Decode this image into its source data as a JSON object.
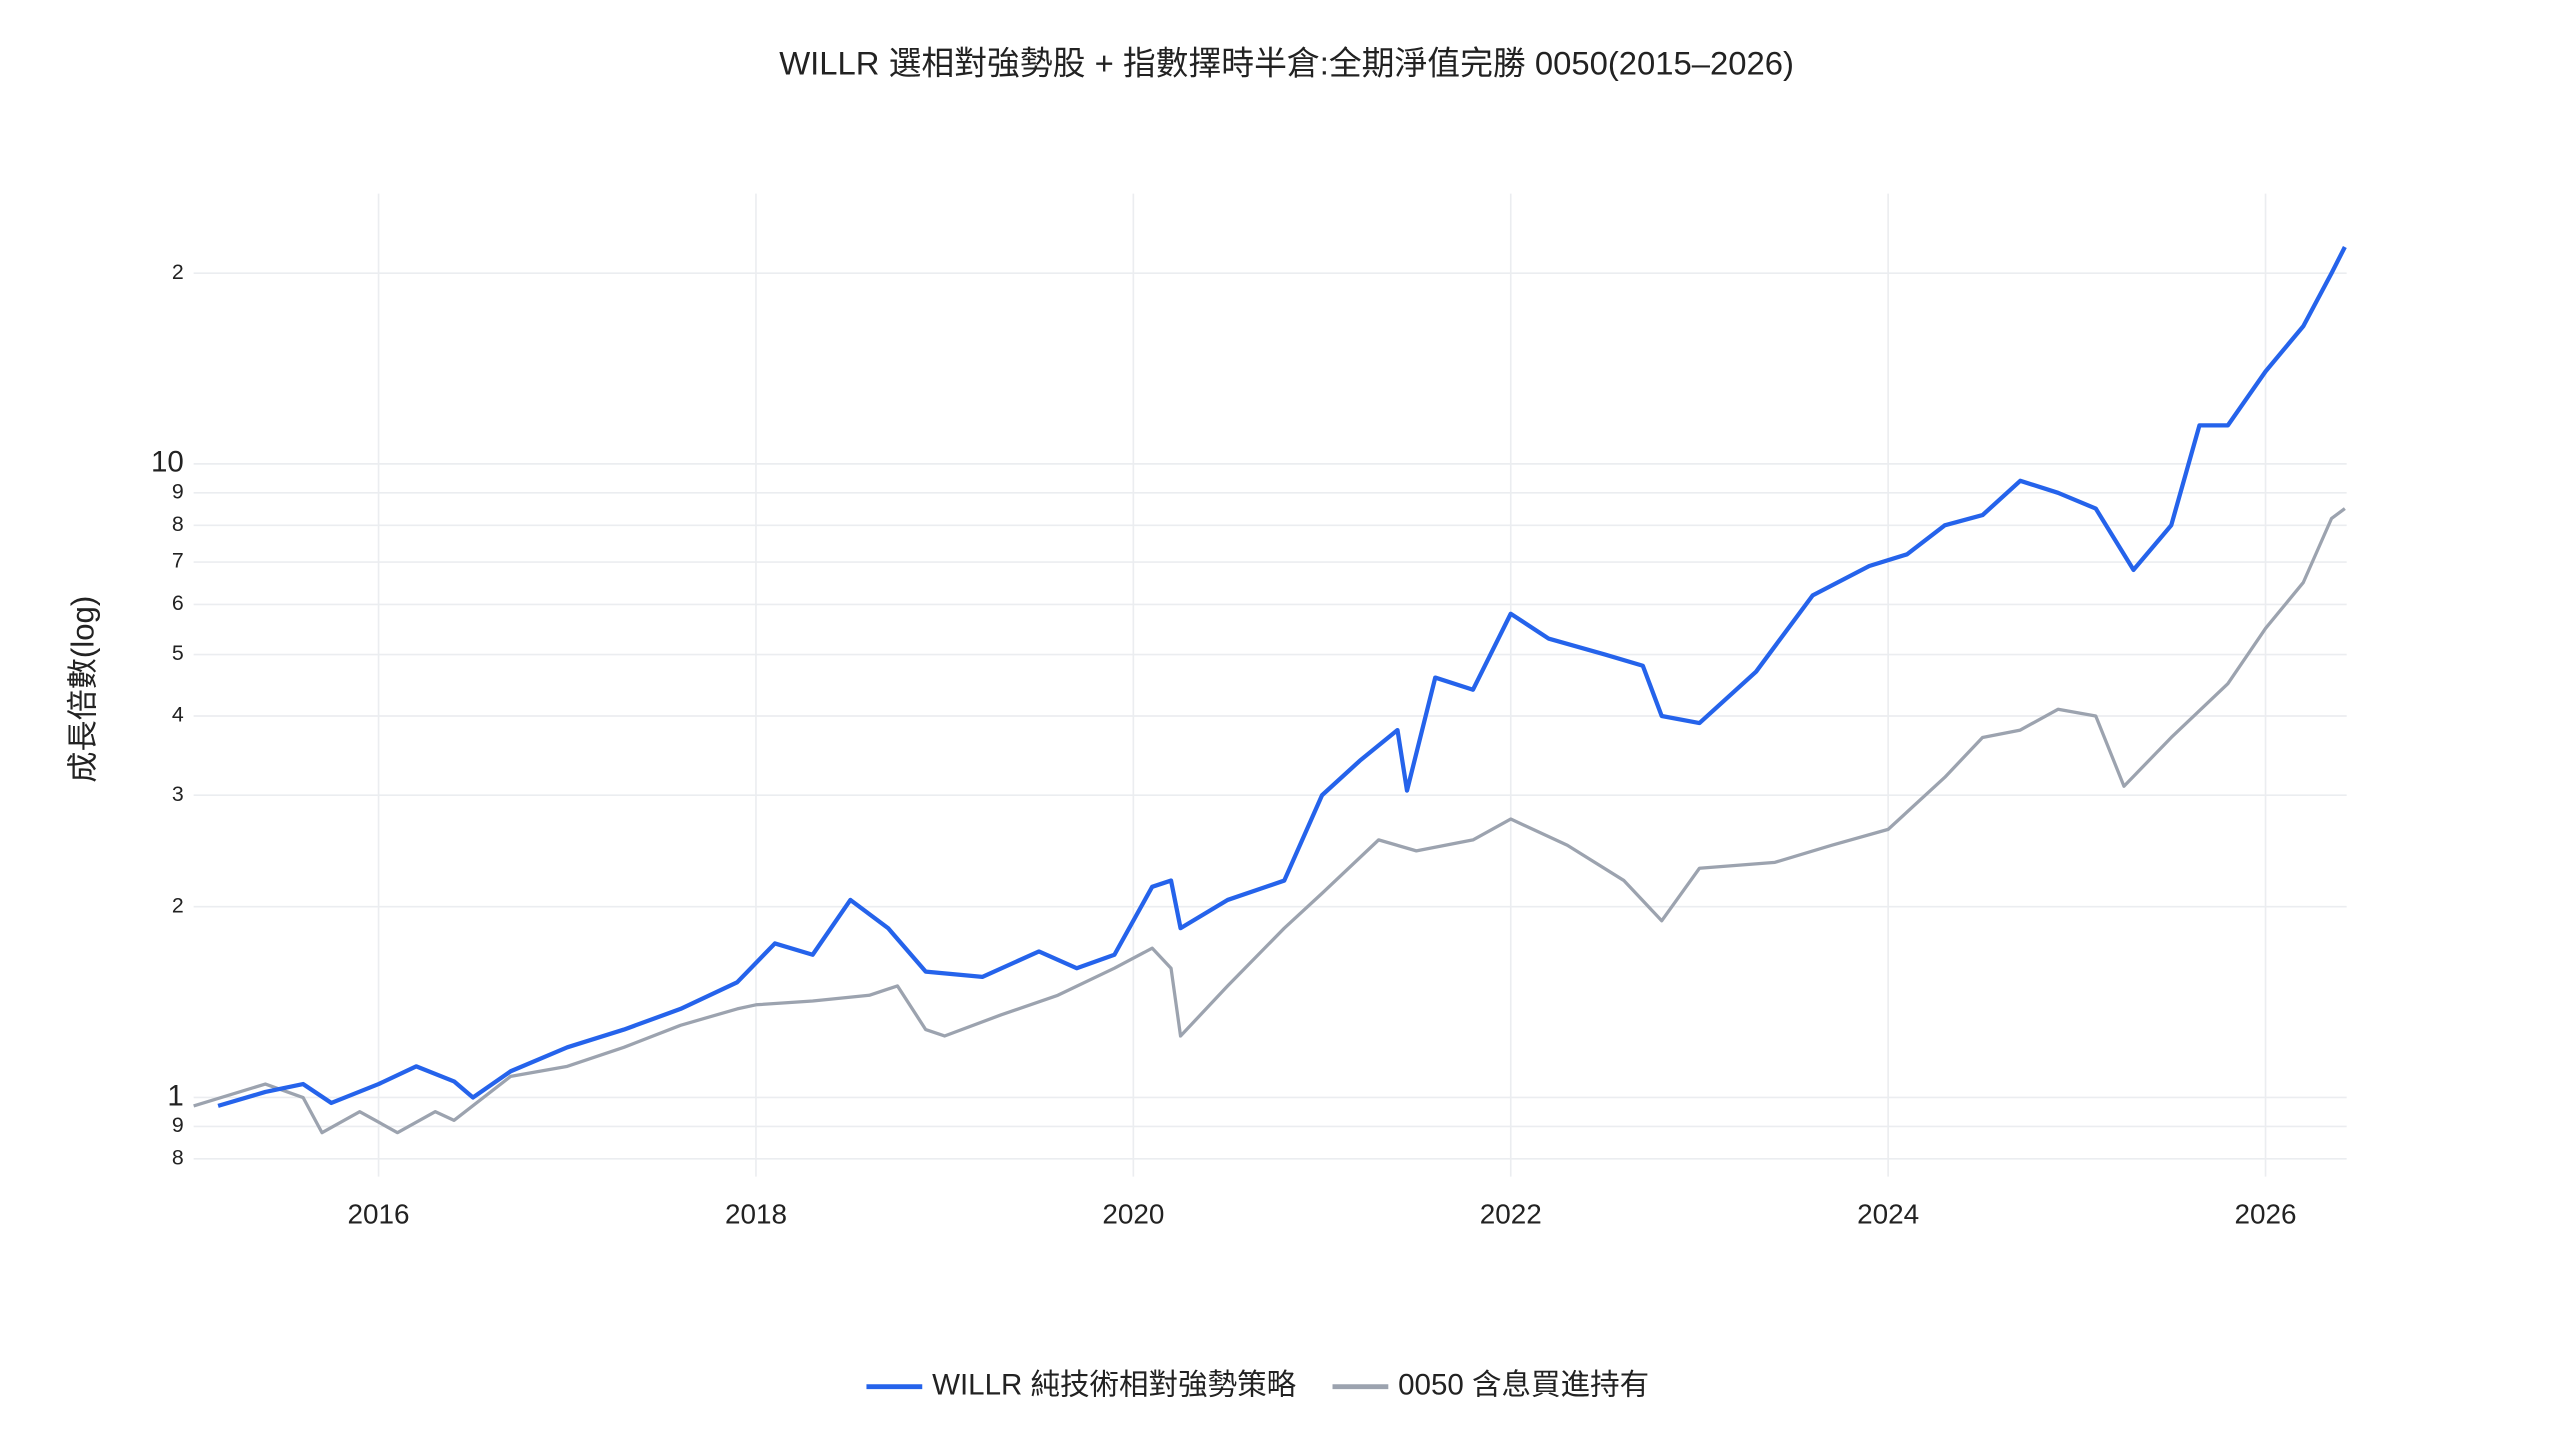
{
  "chart_data": {
    "type": "line",
    "title": "WILLR 選相對強勢股 + 指數擇時半倉:全期淨值完勝 0050(2015–2026)",
    "y_label": "成長倍數(log)",
    "log_y": true,
    "grid": true,
    "legend": "bottom",
    "xlim": [
      2015.02,
      2026.43
    ],
    "xticks": [
      2016,
      2018,
      2020,
      2022,
      2024,
      2026
    ],
    "ylim": [
      0.75,
      26.7
    ],
    "yticks": [
      {
        "value": 0.8,
        "label": "8"
      },
      {
        "value": 0.9,
        "label": "9"
      },
      1,
      2,
      3,
      4,
      5,
      6,
      7,
      8,
      9,
      10,
      {
        "value": 20,
        "label": "2"
      }
    ],
    "series": [
      {
        "name": "WILLR 純技術相對強勢策略",
        "color": "#2563eb",
        "x": [
          2015.15,
          2015.4,
          2015.6,
          2015.75,
          2016.0,
          2016.2,
          2016.4,
          2016.5,
          2016.7,
          2017.0,
          2017.3,
          2017.6,
          2017.9,
          2018.1,
          2018.3,
          2018.5,
          2018.7,
          2018.9,
          2019.2,
          2019.5,
          2019.7,
          2019.9,
          2020.1,
          2020.2,
          2020.25,
          2020.5,
          2020.8,
          2021.0,
          2021.2,
          2021.4,
          2021.45,
          2021.6,
          2021.8,
          2022.0,
          2022.2,
          2022.5,
          2022.7,
          2022.8,
          2023.0,
          2023.3,
          2023.6,
          2023.9,
          2024.1,
          2024.3,
          2024.5,
          2024.7,
          2024.9,
          2025.1,
          2025.3,
          2025.5,
          2025.65,
          2025.8,
          2026.0,
          2026.2,
          2026.35,
          2026.42
        ],
        "values": [
          0.97,
          1.02,
          1.05,
          0.98,
          1.05,
          1.12,
          1.06,
          1.0,
          1.1,
          1.2,
          1.28,
          1.38,
          1.52,
          1.75,
          1.68,
          2.05,
          1.85,
          1.58,
          1.55,
          1.7,
          1.6,
          1.68,
          2.15,
          2.2,
          1.85,
          2.05,
          2.2,
          3.0,
          3.4,
          3.8,
          3.05,
          4.6,
          4.4,
          5.8,
          5.3,
          5.0,
          4.8,
          4.0,
          3.9,
          4.7,
          6.2,
          6.9,
          7.2,
          8.0,
          8.3,
          9.4,
          9.0,
          8.5,
          6.8,
          8.0,
          11.5,
          11.5,
          14.0,
          16.5,
          20,
          22
        ]
      },
      {
        "name": "0050 含息買進持有",
        "color": "#9ca3af",
        "x": [
          2015.02,
          2015.4,
          2015.6,
          2015.7,
          2015.9,
          2016.1,
          2016.3,
          2016.4,
          2016.7,
          2017.0,
          2017.3,
          2017.6,
          2017.9,
          2018.0,
          2018.3,
          2018.6,
          2018.75,
          2018.9,
          2019.0,
          2019.3,
          2019.6,
          2019.9,
          2020.1,
          2020.2,
          2020.25,
          2020.5,
          2020.8,
          2021.0,
          2021.3,
          2021.5,
          2021.8,
          2022.0,
          2022.3,
          2022.6,
          2022.8,
          2023.0,
          2023.4,
          2023.7,
          2024.0,
          2024.3,
          2024.5,
          2024.7,
          2024.9,
          2025.1,
          2025.25,
          2025.5,
          2025.8,
          2026.0,
          2026.2,
          2026.35,
          2026.42
        ],
        "values": [
          0.97,
          1.05,
          1.0,
          0.88,
          0.95,
          0.88,
          0.95,
          0.92,
          1.08,
          1.12,
          1.2,
          1.3,
          1.38,
          1.4,
          1.42,
          1.45,
          1.5,
          1.28,
          1.25,
          1.35,
          1.45,
          1.6,
          1.72,
          1.6,
          1.25,
          1.5,
          1.85,
          2.1,
          2.55,
          2.45,
          2.55,
          2.75,
          2.5,
          2.2,
          1.9,
          2.3,
          2.35,
          2.5,
          2.65,
          3.2,
          3.7,
          3.8,
          4.1,
          4.0,
          3.1,
          3.7,
          4.5,
          5.5,
          6.5,
          8.2,
          8.5
        ]
      }
    ]
  }
}
